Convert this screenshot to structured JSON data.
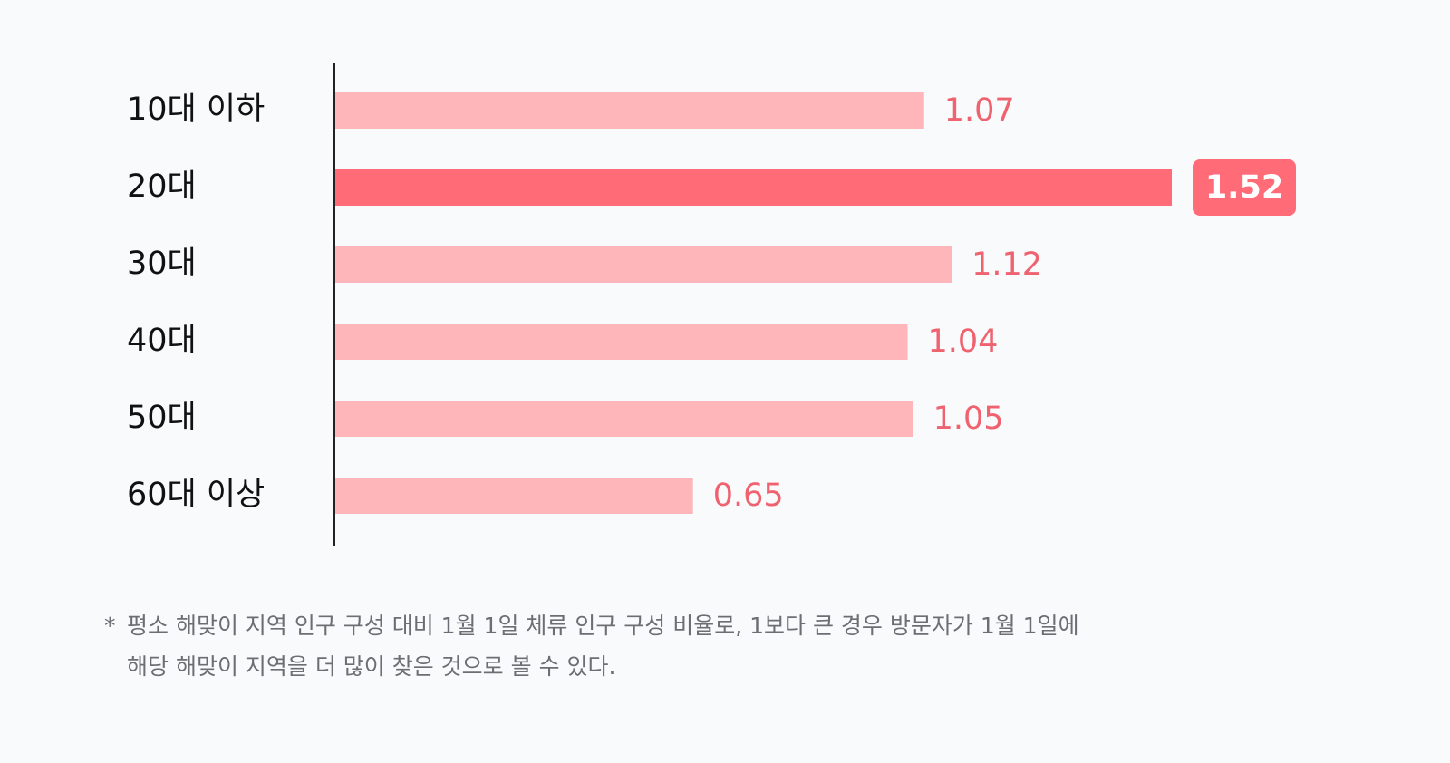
{
  "chart_data": {
    "type": "bar",
    "orientation": "horizontal",
    "categories": [
      "10대 이하",
      "20대",
      "30대",
      "40대",
      "50대",
      "60대 이상"
    ],
    "values": [
      1.07,
      1.52,
      1.12,
      1.04,
      1.05,
      0.65
    ],
    "color": "#ffb6ba",
    "label_color": "#ef6270",
    "highlight": "20대",
    "highlight_color": "#ff6b77",
    "footnote_marker": "*",
    "footnote": [
      "평소 해맞이 지역 인구 구성 대비 1월 1일 체류 인구 구성 비율로, 1보다 큰 경우 방문자가 1월 1일에",
      "해당 해맞이 지역을 더 많이 찾은 것으로 볼 수 있다."
    ]
  }
}
